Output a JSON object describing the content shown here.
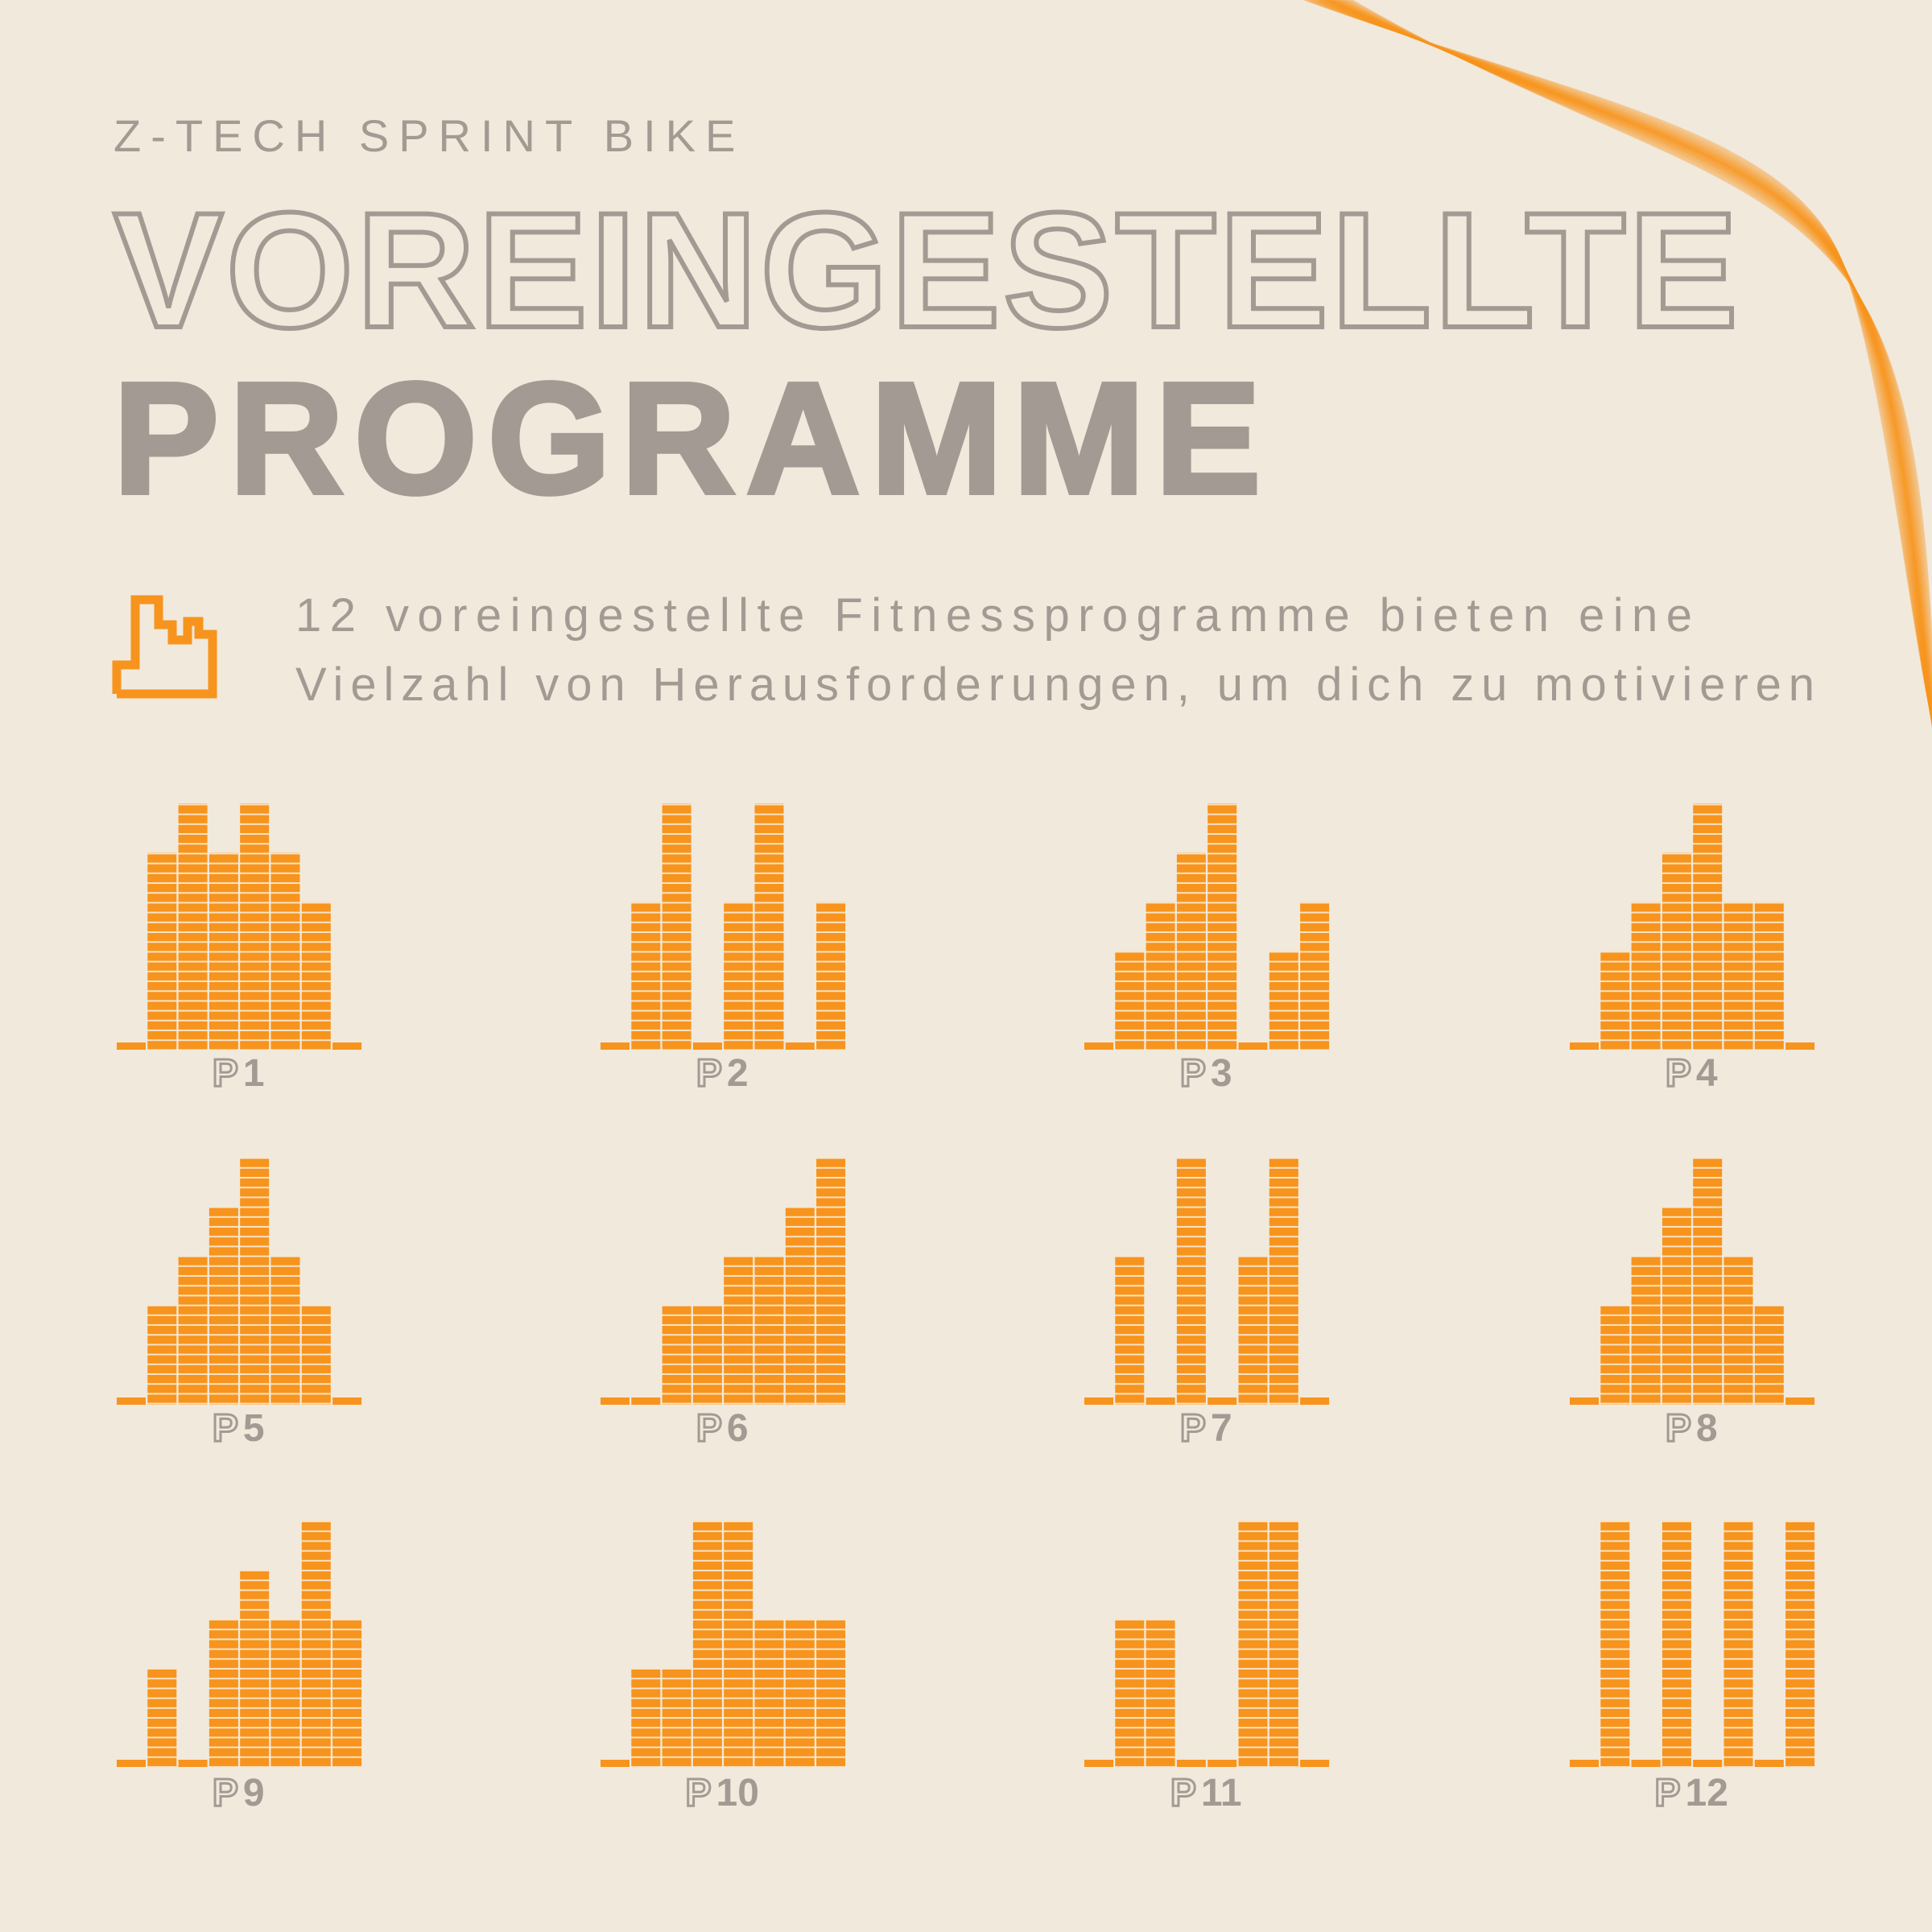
{
  "header": {
    "subtitle": "Z-TECH SPRINT BIKE",
    "title_line1": "VOREINGESTELLTE",
    "title_line2": "PROGRAMME"
  },
  "description": [
    "12 voreingestellte Fitnessprogramme bieten eine",
    "Vielzahl von Herausforderungen, um dich zu motivieren"
  ],
  "programs": [
    {
      "prefix": "P",
      "number": 1,
      "levels": [
        0,
        4,
        5,
        4,
        5,
        4,
        3,
        0
      ]
    },
    {
      "prefix": "P",
      "number": 2,
      "levels": [
        0,
        3,
        5,
        0,
        3,
        5,
        0,
        3
      ]
    },
    {
      "prefix": "P",
      "number": 3,
      "levels": [
        0,
        2,
        3,
        4,
        5,
        0,
        2,
        3
      ]
    },
    {
      "prefix": "P",
      "number": 4,
      "levels": [
        0,
        2,
        3,
        4,
        5,
        3,
        3,
        0
      ]
    },
    {
      "prefix": "P",
      "number": 5,
      "levels": [
        0,
        2,
        3,
        4,
        5,
        3,
        2,
        0
      ]
    },
    {
      "prefix": "P",
      "number": 6,
      "levels": [
        0,
        0,
        2,
        2,
        3,
        3,
        4,
        5
      ]
    },
    {
      "prefix": "P",
      "number": 7,
      "levels": [
        0,
        3,
        0,
        5,
        0,
        3,
        5,
        0
      ]
    },
    {
      "prefix": "P",
      "number": 8,
      "levels": [
        0,
        2,
        3,
        4,
        5,
        3,
        2,
        0
      ]
    },
    {
      "prefix": "P",
      "number": 9,
      "levels": [
        0,
        2,
        0,
        3,
        4,
        3,
        5,
        3
      ]
    },
    {
      "prefix": "P",
      "number": 10,
      "levels": [
        0,
        2,
        2,
        5,
        5,
        3,
        3,
        3
      ]
    },
    {
      "prefix": "P",
      "number": 11,
      "levels": [
        0,
        3,
        3,
        0,
        0,
        5,
        5,
        0
      ]
    },
    {
      "prefix": "P",
      "number": 12,
      "levels": [
        0,
        5,
        0,
        5,
        0,
        5,
        0,
        5
      ]
    }
  ]
}
